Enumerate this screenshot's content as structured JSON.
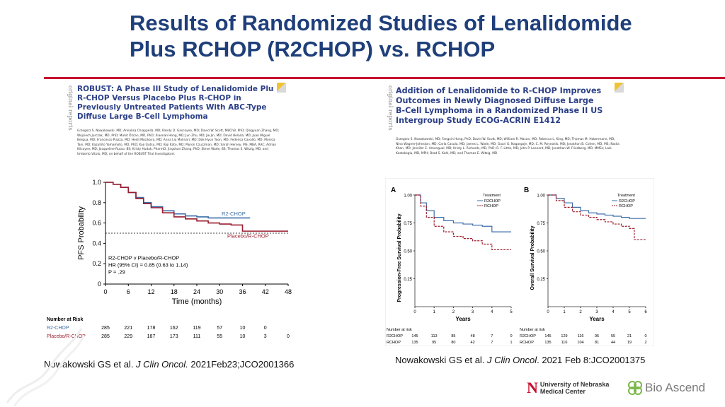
{
  "slide": {
    "title_line1": "Results of Randomized Studies of Lenalidomide",
    "title_line2": "Plus RCHOP (R2CHOP) vs. RCHOP"
  },
  "left_paper": {
    "side_label": "original reports",
    "title_lines": [
      "ROBUST: A Phase III Study of Lenalidomide Plu",
      "R-CHOP Versus Placebo Plus R-CHOP in",
      "Previously Untreated Patients With ABC-Type",
      "Diffuse Large B-Cell Lymphoma"
    ],
    "authors": "Grzegorz S. Nowakowski, MD; Annalisa Chiappella, MD; Randy D. Gascoyne, MD; David W. Scott, MBChB, PhD; Qingyuan Zhang, MD; Wojciech Jurczak, MD, PhD; Muhit Özcan, MD, PhD; Xiaonan Hong, MD; Jun Zhu, MD; Jie Jin, MD; David Belada, MD; Juan Miguel Bergua, MD; Francesco Piazza, MD; Heidi Mocikova, MD; Anna Lia Molinari, MD; Dok Hyun Yoon, MD; Federica Cavallo, MD; Monica Tani, MD; Kazuhito Yamamoto, MD, PhD; Koji Izutsu, MD; Koji Kato, MD; Myron Czuczman, MD; Sarah Hersey, MS, MBA, RAC; Adrian Kilcoyne, MD; Jacqueline Russo, BS; Kristy Hudak, PharmD; Jingshan Zhang, PhD; Steve Wade, BS; Thomas E. Witzig, MD; and Umberto Vitolo, MD; on behalf of the ROBUST Trial Investigators",
    "citation_pre": "Nowakowski GS et al. ",
    "citation_journal": "J Clin Oncol.",
    "citation_post": " 2021Feb23;JCO2001366"
  },
  "right_paper": {
    "side_label": "original reports",
    "title_lines": [
      "Addition of Lenalidomide to R-CHOP Improves",
      "Outcomes in Newly Diagnosed Diffuse Large",
      "B-Cell Lymphoma in a Randomized Phase II US",
      "Intergroup Study ECOG-ACRIN E1412"
    ],
    "authors": "Grzegorz S. Nowakowski, MD; Fangxin Hong, PhD; David W. Scott, MD; William R. Macon, MD; Rebecca L. King, MD; Thomas M. Habermann, MD; Nina Wagner-Johnston, MD; Carla Casulo, MD; James L. Wade, MD; Gauri G. Nagargoje, MD; C. M. Reynolds, MD; Jonathon B. Cohen, MD, MS; Nadia Khan, MD; Jennifer E. Amengual, MD; Kristy L. Richards, MD, PhD; R. F. Little, MD; John P. Leonard, MD; Jonathan W. Friedberg, MD, MMSc; Lale Kostakoglu, MD, MPH; Brad S. Kahl, MD; and Thomas E. Witzig, MD",
    "citation_pre": "Nowakowski GS et al. ",
    "citation_journal": "J Clin Oncol",
    "citation_post": ". 2021 Feb 8:JCO2001375"
  },
  "logos": {
    "unl_line1": "University of Nebraska",
    "unl_line2": "Medical Center",
    "bio": "Bio Ascend"
  },
  "colors": {
    "title": "#1f3f7a",
    "rule": "#c8102e",
    "r2chop": "#3d6ea8",
    "placebo": "#9b1c2e"
  },
  "chart_data": [
    {
      "type": "line",
      "id": "robust-pfs",
      "xlabel": "Time (months)",
      "ylabel": "PFS Probability",
      "xlim": [
        0,
        48
      ],
      "ylim": [
        0,
        1.0
      ],
      "x_ticks": [
        0,
        6,
        12,
        18,
        24,
        30,
        36,
        42,
        48
      ],
      "y_ticks": [
        "0",
        "0.2",
        "0.4",
        "0.6",
        "0.8",
        "1.0"
      ],
      "reference_line": 0.5,
      "series": [
        {
          "name": "R2-CHOP",
          "color": "#3d6ea8",
          "x": [
            0,
            2,
            4,
            6,
            8,
            10,
            12,
            15,
            18,
            21,
            24,
            27,
            30,
            33,
            36,
            38
          ],
          "y": [
            1.0,
            0.98,
            0.95,
            0.9,
            0.85,
            0.8,
            0.76,
            0.72,
            0.69,
            0.67,
            0.66,
            0.65,
            0.65,
            0.65,
            0.65,
            0.65
          ]
        },
        {
          "name": "Placebo/R-CHOP",
          "color": "#9b1c2e",
          "x": [
            0,
            2,
            4,
            6,
            8,
            10,
            12,
            15,
            18,
            21,
            24,
            27,
            30,
            33,
            35.5,
            36,
            40,
            48
          ],
          "y": [
            1.0,
            0.98,
            0.95,
            0.9,
            0.84,
            0.79,
            0.75,
            0.7,
            0.66,
            0.64,
            0.62,
            0.6,
            0.59,
            0.58,
            0.58,
            0.52,
            0.52,
            0.52
          ]
        }
      ],
      "annotations": [
        "R2-CHOP v Placebo/R-CHOP",
        "HR (95% CI) = 0.85 (0.63 to 1.14)",
        "P = .29"
      ],
      "number_at_risk": {
        "label": "Number at Risk",
        "rows": [
          {
            "name": "R2-CHOP",
            "values": [
              "285",
              "221",
              "178",
              "162",
              "119",
              "57",
              "10",
              "0",
              ""
            ]
          },
          {
            "name": "Placebo/R-CHOP",
            "values": [
              "285",
              "229",
              "187",
              "173",
              "111",
              "55",
              "10",
              "3",
              "0"
            ]
          }
        ]
      }
    },
    {
      "type": "line",
      "id": "e1412-pfs",
      "panel_label": "A",
      "xlabel": "Years",
      "ylabel": "Progression-Free Survival Probability",
      "xlim": [
        0,
        5
      ],
      "ylim": [
        0,
        1.0
      ],
      "x_ticks": [
        0,
        1,
        2,
        3,
        4,
        5
      ],
      "y_ticks": [
        "0.25",
        "0.50",
        "0.75",
        "1.00"
      ],
      "legend_title": "Treatment",
      "series": [
        {
          "name": "R2CHOP",
          "color": "#3d6ea8",
          "x": [
            0,
            0.3,
            0.6,
            1.0,
            1.5,
            2.0,
            2.5,
            3.0,
            3.5,
            4.0,
            4.5,
            5.0
          ],
          "y": [
            1.0,
            0.93,
            0.86,
            0.8,
            0.77,
            0.75,
            0.74,
            0.73,
            0.72,
            0.67,
            0.67,
            0.67
          ]
        },
        {
          "name": "RCHOP",
          "color": "#9b1c2e",
          "x": [
            0,
            0.3,
            0.6,
            1.0,
            1.5,
            2.0,
            2.5,
            3.0,
            3.5,
            4.0,
            4.5,
            5.0
          ],
          "y": [
            1.0,
            0.9,
            0.8,
            0.72,
            0.67,
            0.63,
            0.61,
            0.59,
            0.56,
            0.51,
            0.51,
            0.51
          ]
        }
      ],
      "number_at_risk": {
        "label": "Number at risk",
        "rows": [
          {
            "name": "R2CHOP",
            "values": [
              "145",
              "113",
              "85",
              "48",
              "7",
              "0"
            ]
          },
          {
            "name": "RCHOP",
            "values": [
              "135",
              "95",
              "80",
              "42",
              "7",
              "1"
            ]
          }
        ]
      }
    },
    {
      "type": "line",
      "id": "e1412-os",
      "panel_label": "B",
      "xlabel": "Years",
      "ylabel": "Overall Survival Probability",
      "xlim": [
        0,
        6
      ],
      "ylim": [
        0,
        1.0
      ],
      "x_ticks": [
        0,
        1,
        2,
        3,
        4,
        5,
        6
      ],
      "y_ticks": [
        "0.25",
        "0.50",
        "0.75",
        "1.00"
      ],
      "legend_title": "Treatment",
      "series": [
        {
          "name": "R2CHOP",
          "color": "#3d6ea8",
          "x": [
            0,
            0.5,
            1.0,
            1.5,
            2.0,
            2.5,
            3.0,
            3.5,
            4.0,
            4.5,
            5.0,
            5.5,
            6.0
          ],
          "y": [
            1.0,
            0.97,
            0.93,
            0.89,
            0.86,
            0.84,
            0.83,
            0.82,
            0.81,
            0.8,
            0.79,
            0.79,
            0.79
          ]
        },
        {
          "name": "RCHOP",
          "color": "#9b1c2e",
          "x": [
            0,
            0.5,
            1.0,
            1.5,
            2.0,
            2.5,
            3.0,
            3.5,
            4.0,
            4.5,
            5.0,
            5.3,
            6.0
          ],
          "y": [
            1.0,
            0.95,
            0.89,
            0.85,
            0.82,
            0.8,
            0.78,
            0.76,
            0.74,
            0.72,
            0.7,
            0.6,
            0.6
          ]
        }
      ],
      "number_at_risk": {
        "label": "Number at risk",
        "rows": [
          {
            "name": "R2CHOP",
            "values": [
              "145",
              "129",
              "116",
              "95",
              "55",
              "21",
              "0"
            ]
          },
          {
            "name": "RCHOP",
            "values": [
              "135",
              "116",
              "104",
              "81",
              "44",
              "19",
              "2"
            ]
          }
        ]
      }
    }
  ]
}
